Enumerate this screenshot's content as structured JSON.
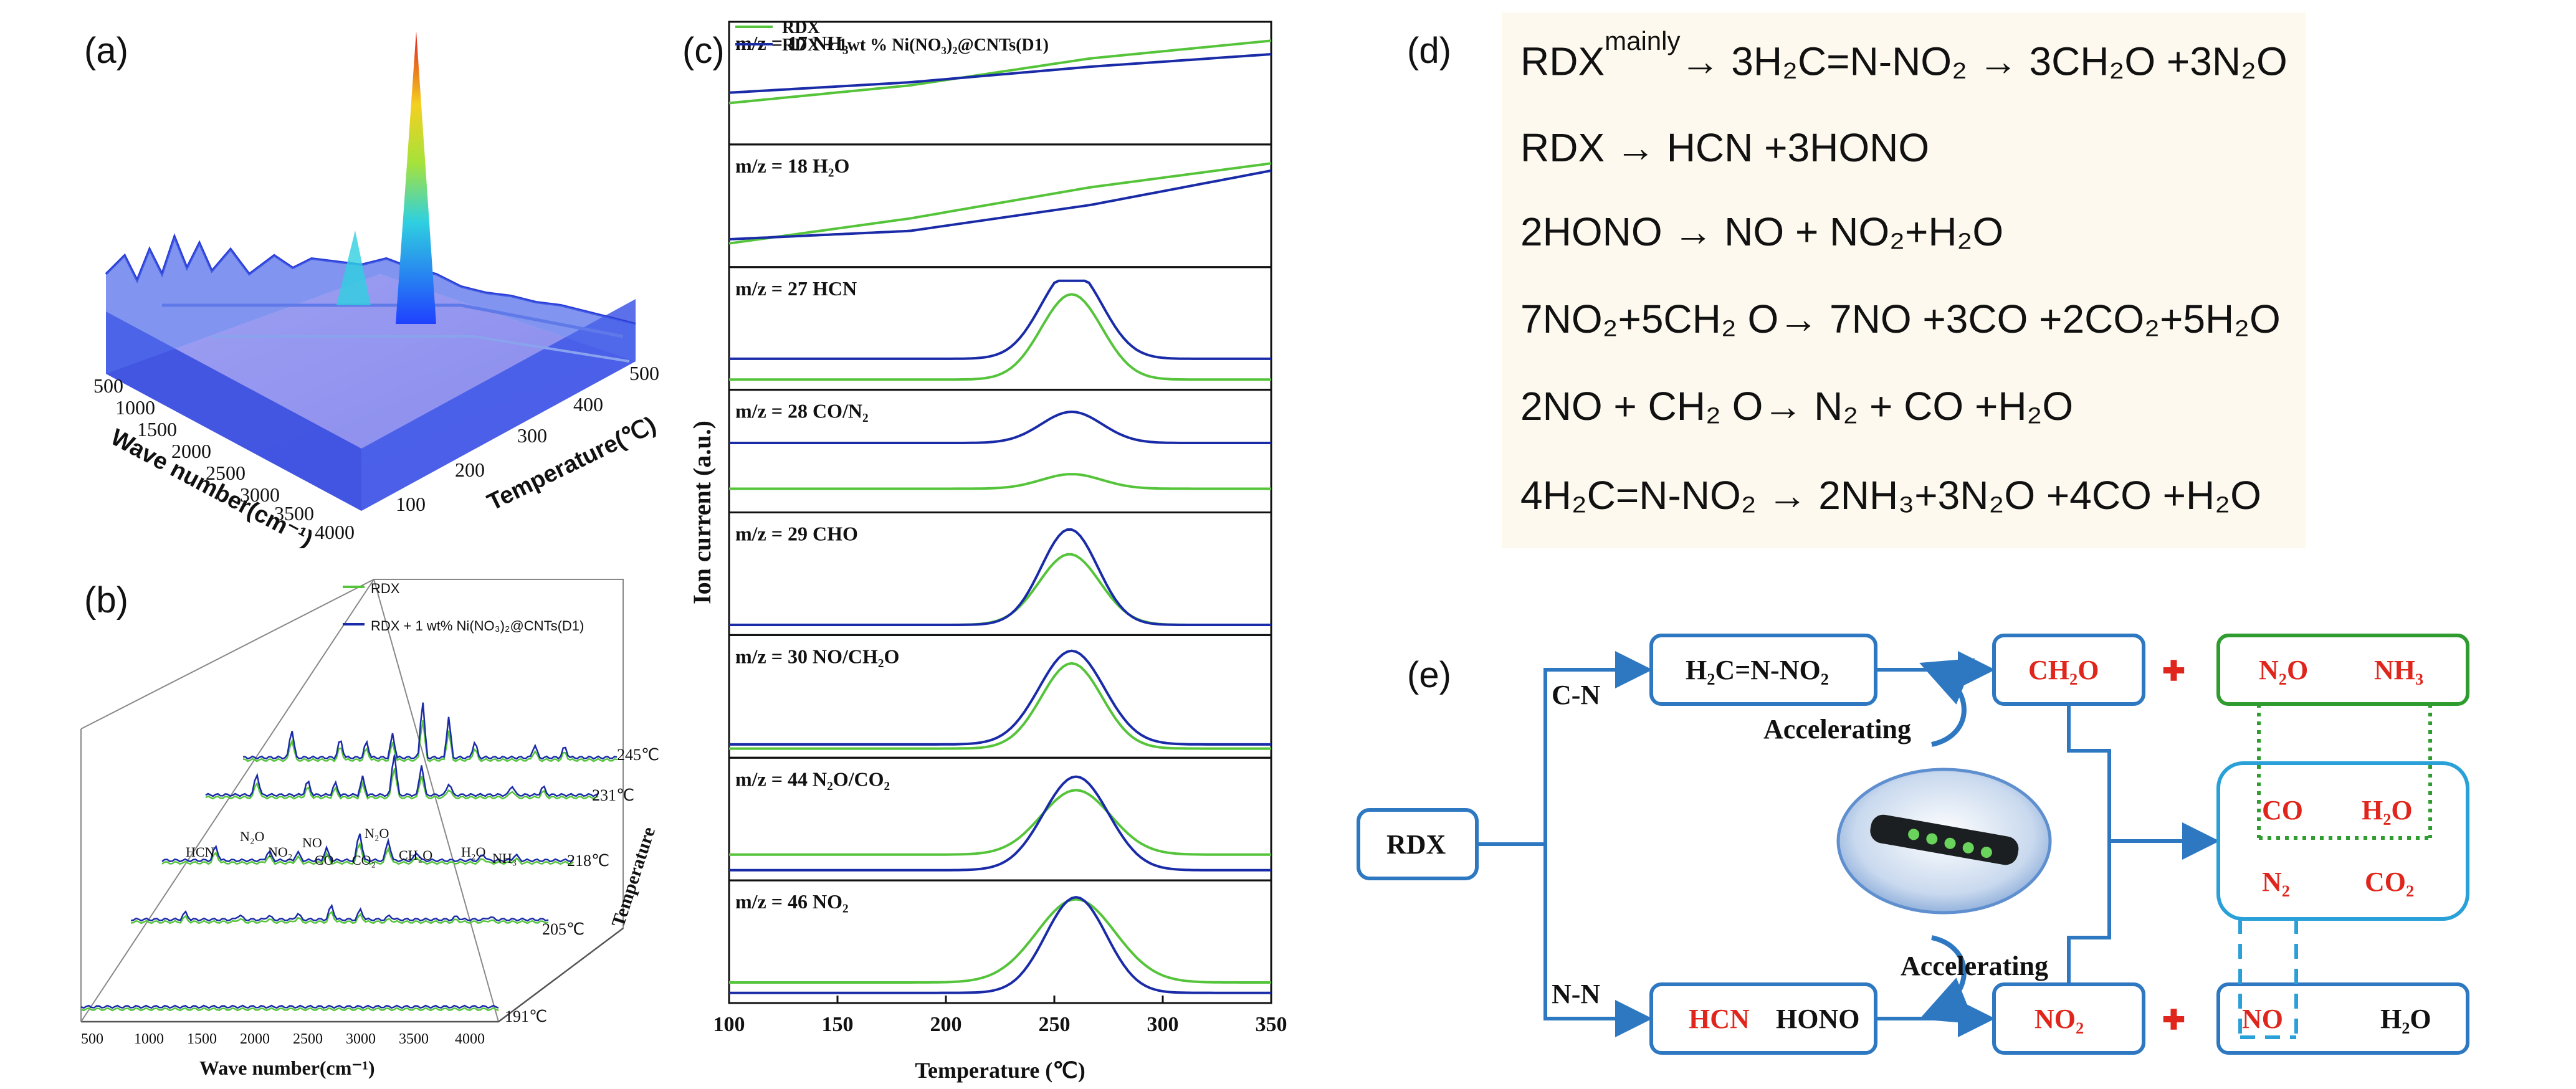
{
  "colors": {
    "rdx": "#55c43a",
    "doped": "#1a2ba8",
    "flow": "#2e78c2",
    "red": "#e0261c",
    "green": "#2e9c2e",
    "cyan": "#2aa0d8"
  },
  "panel_labels": {
    "a": "(a)",
    "b": "(b)",
    "c": "(c)",
    "d": "(d)",
    "e": "(e)"
  },
  "panel_a": {
    "xlabel": "Wave number(cm⁻¹)",
    "ylabel": "Temperature(℃)",
    "wave_ticks": [
      "500",
      "1000",
      "1500",
      "2000",
      "2500",
      "3000",
      "3500",
      "4000"
    ],
    "temp_ticks": [
      "100",
      "200",
      "300",
      "400",
      "500"
    ]
  },
  "panel_b": {
    "legend": [
      "RDX",
      "RDX + 1 wt% Ni(NO₃)₂@CNTs(D1)"
    ],
    "xlabel": "Wave number(cm⁻¹)",
    "zlabel": "Temperature",
    "x_ticks": [
      "500",
      "1000",
      "1500",
      "2000",
      "2500",
      "3000",
      "3500",
      "4000"
    ],
    "temps": [
      "245℃",
      "231℃",
      "218℃",
      "205℃",
      "191℃"
    ],
    "peaks": [
      "HCN",
      "N₂O",
      "NO₂",
      "NO",
      "CO",
      "CO₂",
      "N₂O",
      "CH₂O",
      "H₂O",
      "NH₃"
    ]
  },
  "chart_data": {
    "type": "line",
    "xlabel": "Temperature (℃)",
    "ylabel": "Ion current (a.u.)",
    "x_ticks": [
      "100",
      "150",
      "200",
      "250",
      "300",
      "350"
    ],
    "xlim": [
      100,
      350
    ],
    "legend": [
      "RDX",
      "RDX + 1wt % Ni(NO₃)₂@CNTs(D1)"
    ],
    "subplots": [
      {
        "label": "m/z = 17 NH₃",
        "type": "ramp",
        "rdx": [
          0.35,
          0.52,
          0.78,
          0.95
        ],
        "doped": [
          0.45,
          0.55,
          0.7,
          0.82
        ]
      },
      {
        "label": "m/z = 18 H₂O",
        "type": "ramp",
        "rdx": [
          0.18,
          0.42,
          0.72,
          0.95
        ],
        "doped": [
          0.22,
          0.3,
          0.55,
          0.88
        ]
      },
      {
        "label": "m/z = 27 HCN",
        "type": "peak",
        "peak_t": 258,
        "rdx": {
          "base": 0.05,
          "h": 0.82,
          "w": 14
        },
        "doped": {
          "base": 0.25,
          "h": 0.86,
          "w": 14
        }
      },
      {
        "label": "m/z = 28 CO/N₂",
        "type": "peak",
        "peak_t": 258,
        "rdx": {
          "base": 0.18,
          "h": 0.14,
          "w": 14
        },
        "doped": {
          "base": 0.62,
          "h": 0.3,
          "w": 14
        }
      },
      {
        "label": "m/z = 29 CHO",
        "type": "peak",
        "peak_t": 257,
        "rdx": {
          "base": 0.05,
          "h": 0.68,
          "w": 14
        },
        "doped": {
          "base": 0.05,
          "h": 0.92,
          "w": 13
        }
      },
      {
        "label": "m/z = 30 NO/CH₂O",
        "type": "peak",
        "peak_t": 258,
        "rdx": {
          "base": 0.04,
          "h": 0.82,
          "w": 14
        },
        "doped": {
          "base": 0.08,
          "h": 0.9,
          "w": 15
        }
      },
      {
        "label": "m/z = 44 N₂O/CO₂",
        "type": "peak",
        "peak_t": 260,
        "rdx": {
          "base": 0.2,
          "h": 0.62,
          "w": 16
        },
        "doped": {
          "base": 0.05,
          "h": 0.9,
          "w": 15
        }
      },
      {
        "label": "m/z = 46 NO₂",
        "type": "peak",
        "peak_t": 260,
        "rdx": {
          "base": 0.15,
          "h": 0.8,
          "w": 18
        },
        "doped": {
          "base": 0.05,
          "h": 0.92,
          "w": 14
        }
      }
    ]
  },
  "panel_d": {
    "equations": [
      {
        "pre": "RDX",
        "sup": "mainly",
        "rest": "→ 3H₂C=N-NO₂ → 3CH₂O +3N₂O"
      },
      {
        "pre": "",
        "sup": "",
        "rest": "RDX → HCN +3HONO"
      },
      {
        "pre": "",
        "sup": "",
        "rest": "2HONO → NO + NO₂+H₂O"
      },
      {
        "pre": "",
        "sup": "",
        "rest": "7NO₂+5CH₂ O→ 7NO +3CO +2CO₂+5H₂O"
      },
      {
        "pre": "",
        "sup": "",
        "rest": "2NO + CH₂ O→ N₂ + CO +H₂O"
      },
      {
        "pre": "",
        "sup": "",
        "rest": "4H₂C=N-NO₂  →  2NH₃+3N₂O +4CO +H₂O"
      }
    ]
  },
  "panel_e": {
    "rdx": "RDX",
    "cn": "C-N",
    "nn": "N-N",
    "h2cnno2": "H₂C=N-NO₂",
    "ch2o": "CH₂O",
    "n2o": "N₂O",
    "nh3": "NH₃",
    "hcn": "HCN",
    "hono": "HONO",
    "no2": "NO₂",
    "no": "NO",
    "h2o_bottom": "H₂O",
    "co": "CO",
    "h2o": "H₂O",
    "n2": "N₂",
    "co2": "CO₂",
    "accel_top": "Accelerating",
    "accel_bottom": "Accelerating",
    "plus": "✚"
  }
}
